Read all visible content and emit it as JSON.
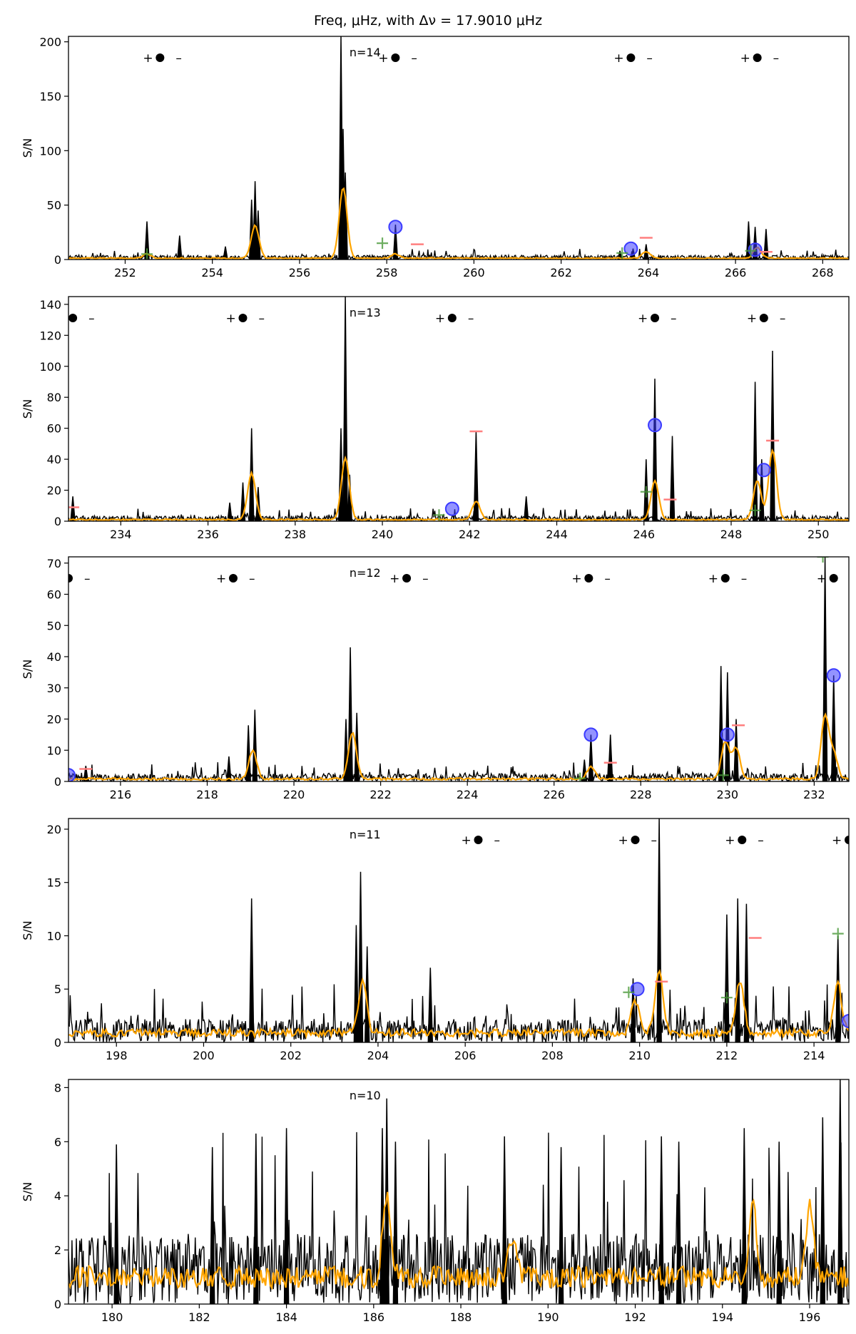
{
  "figure": {
    "title": "Freq, μHz, with Δν = 17.9010 μHz"
  },
  "chart_data": [
    {
      "type": "line",
      "panel_label": "n=14",
      "ylabel": "S/N",
      "xlim": [
        250.7,
        268.6
      ],
      "ylim": [
        0,
        205
      ],
      "xticks": [
        252,
        254,
        256,
        258,
        260,
        262,
        264,
        266,
        268
      ],
      "yticks": [
        0,
        50,
        100,
        150,
        200
      ],
      "series": [
        {
          "values": [
            [
              252.5,
              35
            ],
            [
              253.25,
              22
            ],
            [
              254.3,
              12
            ],
            [
              254.9,
              55
            ],
            [
              254.98,
              72
            ],
            [
              255.05,
              45
            ],
            [
              256.95,
              205
            ],
            [
              257.0,
              120
            ],
            [
              257.05,
              80
            ],
            [
              258.2,
              32
            ],
            [
              263.35,
              8
            ],
            [
              263.65,
              10
            ],
            [
              263.95,
              14
            ],
            [
              266.3,
              35
            ],
            [
              266.45,
              30
            ],
            [
              266.7,
              28
            ]
          ]
        },
        {
          "values": [
            [
              252.5,
              4
            ],
            [
              254.98,
              30
            ],
            [
              257.0,
              65
            ],
            [
              258.2,
              4
            ],
            [
              263.95,
              6
            ],
            [
              266.5,
              10
            ]
          ]
        }
      ],
      "markers": {
        "blue_circles": [
          [
            258.2,
            30
          ],
          [
            263.6,
            10
          ],
          [
            266.45,
            9
          ]
        ],
        "green_plus": [
          [
            252.5,
            5
          ],
          [
            257.9,
            15
          ],
          [
            263.4,
            6
          ],
          [
            266.35,
            8
          ]
        ],
        "red_bars": [
          [
            258.7,
            14
          ],
          [
            263.95,
            20
          ],
          [
            266.7,
            7
          ]
        ]
      },
      "mode_groups": [
        252.8,
        258.2,
        263.6,
        266.5
      ]
    },
    {
      "type": "line",
      "panel_label": "n=13",
      "ylabel": "S/N",
      "xlim": [
        232.8,
        250.7
      ],
      "ylim": [
        0,
        145
      ],
      "xticks": [
        234,
        236,
        238,
        240,
        242,
        244,
        246,
        248,
        250
      ],
      "yticks": [
        0,
        20,
        40,
        60,
        80,
        100,
        120,
        140
      ],
      "series": [
        {
          "values": [
            [
              232.9,
              16
            ],
            [
              236.5,
              12
            ],
            [
              236.8,
              25
            ],
            [
              237.0,
              60
            ],
            [
              237.15,
              22
            ],
            [
              239.05,
              60
            ],
            [
              239.15,
              145
            ],
            [
              239.25,
              30
            ],
            [
              242.15,
              58
            ],
            [
              243.3,
              16
            ],
            [
              246.05,
              40
            ],
            [
              246.25,
              92
            ],
            [
              246.65,
              55
            ],
            [
              248.55,
              90
            ],
            [
              248.7,
              40
            ],
            [
              248.95,
              110
            ]
          ]
        },
        {
          "values": [
            [
              237.0,
              30
            ],
            [
              239.15,
              40
            ],
            [
              242.15,
              12
            ],
            [
              246.25,
              25
            ],
            [
              248.6,
              25
            ],
            [
              248.95,
              45
            ]
          ]
        }
      ],
      "markers": {
        "blue_circles": [
          [
            241.6,
            8
          ],
          [
            246.25,
            62
          ],
          [
            248.75,
            33
          ]
        ],
        "green_plus": [
          [
            241.3,
            4
          ],
          [
            246.05,
            19
          ],
          [
            248.55,
            7
          ]
        ],
        "red_bars": [
          [
            232.9,
            9
          ],
          [
            242.15,
            58
          ],
          [
            246.6,
            14
          ],
          [
            248.95,
            52
          ]
        ]
      },
      "mode_groups": [
        232.9,
        236.8,
        241.6,
        246.25,
        248.75
      ]
    },
    {
      "type": "line",
      "panel_label": "n=12",
      "ylabel": "S/N",
      "xlim": [
        214.8,
        232.8
      ],
      "ylim": [
        0,
        72
      ],
      "xticks": [
        216,
        218,
        220,
        222,
        224,
        226,
        228,
        230,
        232
      ],
      "yticks": [
        0,
        10,
        20,
        30,
        40,
        50,
        60,
        70
      ],
      "series": [
        {
          "values": [
            [
              215.2,
              5
            ],
            [
              218.5,
              8
            ],
            [
              218.95,
              18
            ],
            [
              219.1,
              23
            ],
            [
              221.2,
              20
            ],
            [
              221.3,
              43
            ],
            [
              221.45,
              22
            ],
            [
              226.7,
              7
            ],
            [
              226.85,
              15
            ],
            [
              227.3,
              15
            ],
            [
              229.85,
              37
            ],
            [
              230.0,
              35
            ],
            [
              230.2,
              20
            ],
            [
              232.25,
              72
            ],
            [
              232.45,
              34
            ]
          ]
        },
        {
          "values": [
            [
              219.05,
              9
            ],
            [
              221.35,
              15
            ],
            [
              226.85,
              4
            ],
            [
              229.95,
              12
            ],
            [
              230.2,
              10
            ],
            [
              232.25,
              20
            ],
            [
              232.45,
              8
            ]
          ]
        }
      ],
      "markers": {
        "blue_circles": [
          [
            214.8,
            2
          ],
          [
            226.85,
            15
          ],
          [
            230.0,
            15
          ],
          [
            232.45,
            34
          ]
        ],
        "green_plus": [
          [
            226.6,
            1
          ],
          [
            229.9,
            2
          ],
          [
            232.2,
            72
          ]
        ],
        "red_bars": [
          [
            215.2,
            4
          ],
          [
            227.3,
            6
          ],
          [
            230.25,
            18
          ]
        ]
      },
      "mode_groups": [
        214.8,
        218.6,
        222.6,
        226.8,
        229.95,
        232.45
      ]
    },
    {
      "type": "line",
      "panel_label": "n=11",
      "ylabel": "S/N",
      "xlim": [
        196.9,
        214.8
      ],
      "ylim": [
        0,
        21
      ],
      "xticks": [
        198,
        200,
        202,
        204,
        206,
        208,
        210,
        212,
        214
      ],
      "yticks": [
        0,
        5,
        10,
        15,
        20
      ],
      "series": [
        {
          "values": [
            [
              201.1,
              13.5
            ],
            [
              203.5,
              11
            ],
            [
              203.6,
              16
            ],
            [
              203.75,
              9
            ],
            [
              205.2,
              7
            ],
            [
              209.85,
              6
            ],
            [
              210.45,
              21
            ],
            [
              212.0,
              12
            ],
            [
              212.25,
              13.5
            ],
            [
              212.45,
              13
            ],
            [
              214.55,
              10
            ]
          ]
        },
        {
          "values": [
            [
              203.65,
              5
            ],
            [
              209.9,
              3
            ],
            [
              210.45,
              6
            ],
            [
              212.3,
              5
            ],
            [
              214.55,
              4.5
            ]
          ]
        }
      ],
      "markers": {
        "blue_circles": [
          [
            209.95,
            5
          ],
          [
            214.8,
            2
          ]
        ],
        "green_plus": [
          [
            209.75,
            4.7
          ],
          [
            212.0,
            4.2
          ],
          [
            214.55,
            10.2
          ]
        ],
        "red_bars": [
          [
            210.5,
            5.7
          ],
          [
            212.65,
            9.8
          ]
        ]
      },
      "mode_groups": [
        206.3,
        209.9,
        212.35,
        214.8
      ]
    },
    {
      "type": "line",
      "panel_label": "n=10",
      "ylabel": "S/N",
      "xlim": [
        179.0,
        196.9
      ],
      "ylim": [
        0,
        8.3
      ],
      "xticks": [
        180,
        182,
        184,
        186,
        188,
        190,
        192,
        194,
        196
      ],
      "yticks": [
        0,
        2,
        4,
        6,
        8
      ],
      "series": [
        {
          "values": [
            [
              180.1,
              5.9
            ],
            [
              182.3,
              5.8
            ],
            [
              183.3,
              6.3
            ],
            [
              184.0,
              6.5
            ],
            [
              186.2,
              6.5
            ],
            [
              186.3,
              7.6
            ],
            [
              186.5,
              6.0
            ],
            [
              189.0,
              6.2
            ],
            [
              190.3,
              5.8
            ],
            [
              192.6,
              6.2
            ],
            [
              193.0,
              6.0
            ],
            [
              194.5,
              6.5
            ],
            [
              195.3,
              6.0
            ],
            [
              196.3,
              6.9
            ],
            [
              196.7,
              8.3
            ]
          ]
        },
        {
          "values": [
            [
              186.3,
              2.9
            ],
            [
              189.2,
              1.6
            ],
            [
              194.7,
              2.7
            ],
            [
              196.0,
              2.5
            ]
          ]
        }
      ],
      "markers": {
        "blue_circles": [],
        "green_plus": [],
        "red_bars": []
      },
      "mode_groups": []
    }
  ],
  "style": {
    "psd_color": "#000000",
    "smooth_color": "#ffa500",
    "circle_color": "#3b3bff",
    "plus_color": "#4a9a3a",
    "bar_color": "#ff7f7f"
  }
}
